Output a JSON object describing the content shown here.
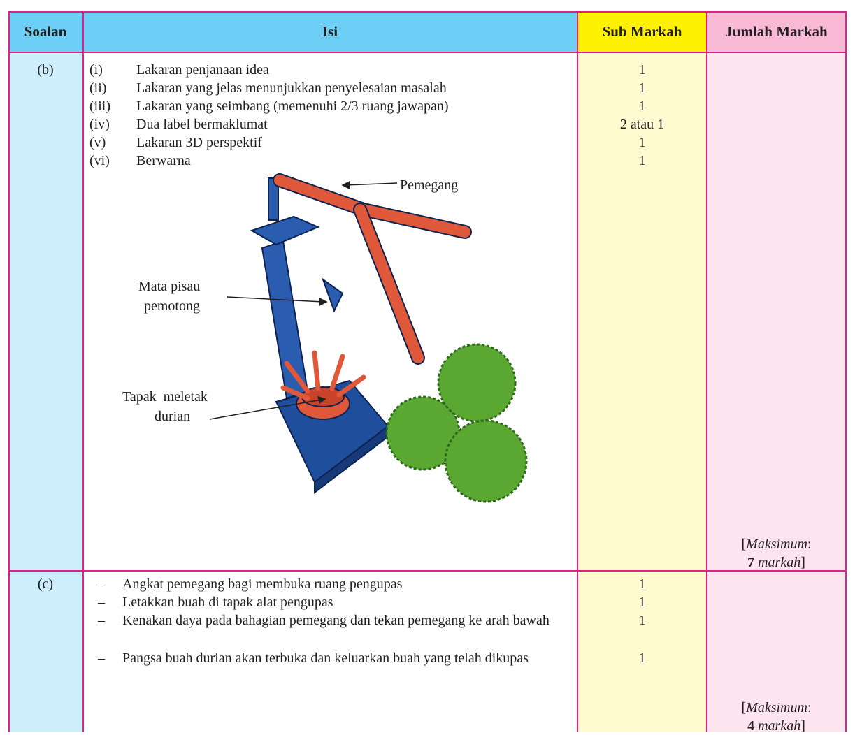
{
  "header": {
    "soalan": "Soalan",
    "isi": "Isi",
    "sub_markah": "Sub Markah",
    "jumlah_markah": "Jumlah Markah"
  },
  "rows": [
    {
      "question": "(b)",
      "items": [
        {
          "num": "(i)",
          "text": "Lakaran penjanaan idea",
          "mark": "1"
        },
        {
          "num": "(ii)",
          "text": "Lakaran yang jelas menunjukkan penyelesaian masalah",
          "mark": "1"
        },
        {
          "num": "(iii)",
          "text": "Lakaran yang seimbang (memenuhi 2/3 ruang jawapan)",
          "mark": "1"
        },
        {
          "num": "(iv)",
          "text": "Dua label bermaklumat",
          "mark": "2 atau 1"
        },
        {
          "num": "(v)",
          "text": "Lakaran 3D perspektif",
          "mark": "1"
        },
        {
          "num": "(vi)",
          "text": "Berwarna",
          "mark": "1"
        }
      ],
      "figure_labels": [
        [
          "Pemegang"
        ],
        [
          "Mata pisau",
          "pemotong"
        ],
        [
          "Tapak  meletak",
          "durian"
        ]
      ],
      "total": {
        "open": "[",
        "label": "Maksimum",
        "colon": ":",
        "value": "7",
        "unit": "markah",
        "close": "]"
      }
    },
    {
      "question": "(c)",
      "items": [
        {
          "num": "–",
          "text": "Angkat pemegang bagi membuka ruang pengupas",
          "mark": "1"
        },
        {
          "num": "–",
          "text": "Letakkan buah di tapak alat pengupas",
          "mark": "1"
        },
        {
          "num": "–",
          "text": "Kenakan daya pada bahagian pemegang dan tekan pemegang ke arah bawah",
          "mark": "1"
        },
        {
          "num": "–",
          "text": "Pangsa buah durian akan terbuka dan keluarkan buah yang telah dikupas",
          "mark": "1"
        }
      ],
      "total": {
        "open": "[",
        "label": "Maksimum",
        "colon": ":",
        "value": "4",
        "unit": "markah",
        "close": "]"
      }
    }
  ]
}
